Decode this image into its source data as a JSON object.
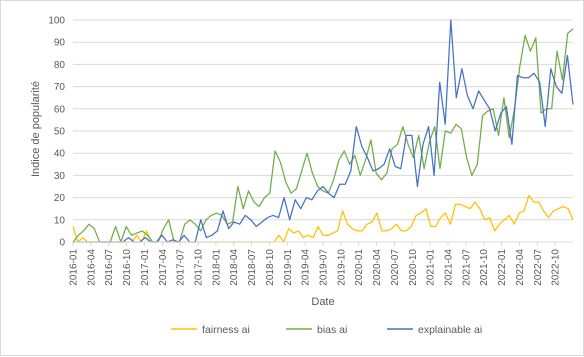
{
  "chart_data": {
    "type": "line",
    "title": "",
    "xlabel": "Date",
    "ylabel": "Indice de popularité",
    "ylim": [
      0,
      100
    ],
    "yticks": [
      0,
      10,
      20,
      30,
      40,
      50,
      60,
      70,
      80,
      90,
      100
    ],
    "grid": "horizontal",
    "legend_position": "bottom",
    "x_tick_labels": [
      "2016-01",
      "2016-04",
      "2016-07",
      "2016-10",
      "2017-01",
      "2017-04",
      "2017-07",
      "2017-10",
      "2018-01",
      "2018-04",
      "2018-07",
      "2018-10",
      "2019-01",
      "2019-04",
      "2019-07",
      "2019-10",
      "2020-01",
      "2020-04",
      "2020-07",
      "2020-10",
      "2021-01",
      "2021-04",
      "2021-07",
      "2021-10",
      "2022-01",
      "2022-04",
      "2022-07",
      "2022-10"
    ],
    "x_start": "2016-01",
    "x_end": "2023-01",
    "series": [
      {
        "name": "fairness ai",
        "color": "#FFC000",
        "values": [
          7,
          0,
          2,
          0,
          0,
          0,
          0,
          0,
          0,
          0,
          0,
          0,
          0,
          3,
          0,
          5,
          0,
          0,
          0,
          0,
          0,
          0,
          0,
          0,
          0,
          0,
          0,
          0,
          0,
          0,
          0,
          0,
          0,
          0,
          0,
          0,
          0,
          0,
          0,
          0,
          0,
          0,
          3,
          0,
          6,
          4,
          5,
          2,
          3,
          2,
          7,
          3,
          3,
          4,
          5,
          14,
          8,
          6,
          5,
          5,
          8,
          9,
          13,
          5,
          5,
          6,
          8,
          5,
          5,
          7,
          12,
          13,
          15,
          7,
          7,
          11,
          13,
          8,
          17,
          17,
          16,
          15,
          18,
          15,
          10,
          11,
          5,
          8,
          10,
          12,
          8,
          13,
          14,
          21,
          18,
          18,
          14,
          11,
          14,
          15,
          16,
          15,
          10
        ]
      },
      {
        "name": "bias ai",
        "color": "#70AD47",
        "values": [
          0,
          3,
          5,
          8,
          6,
          0,
          0,
          0,
          7,
          0,
          7,
          3,
          4,
          5,
          3,
          0,
          0,
          6,
          10,
          0,
          0,
          8,
          10,
          8,
          5,
          10,
          12,
          13,
          12,
          8,
          9,
          25,
          15,
          23,
          18,
          16,
          20,
          22,
          41,
          36,
          27,
          22,
          24,
          32,
          40,
          31,
          25,
          23,
          22,
          28,
          37,
          41,
          35,
          39,
          30,
          37,
          46,
          31,
          28,
          31,
          42,
          44,
          52,
          44,
          38,
          48,
          33,
          45,
          52,
          33,
          50,
          49,
          53,
          51,
          38,
          30,
          35,
          57,
          59,
          60,
          48,
          65,
          47,
          60,
          79,
          93,
          86,
          92,
          58,
          60,
          60,
          86,
          73,
          94,
          96
        ]
      },
      {
        "name": "explainable ai",
        "color": "#4472C4",
        "values": [
          0,
          0,
          0,
          0,
          0,
          0,
          0,
          0,
          0,
          0,
          2,
          0,
          0,
          2,
          0,
          0,
          3,
          0,
          1,
          0,
          3,
          0,
          0,
          10,
          2,
          3,
          5,
          14,
          6,
          9,
          8,
          12,
          10,
          7,
          9,
          11,
          12,
          11,
          20,
          10,
          19,
          15,
          20,
          19,
          23,
          25,
          22,
          20,
          26,
          26,
          32,
          52,
          43,
          38,
          32,
          33,
          35,
          42,
          34,
          33,
          48,
          48,
          25,
          44,
          52,
          30,
          72,
          53,
          100,
          65,
          78,
          66,
          60,
          68,
          64,
          60,
          50,
          58,
          61,
          44,
          75,
          74,
          74,
          76,
          72,
          52,
          78,
          70,
          67,
          84,
          62
        ]
      }
    ]
  }
}
